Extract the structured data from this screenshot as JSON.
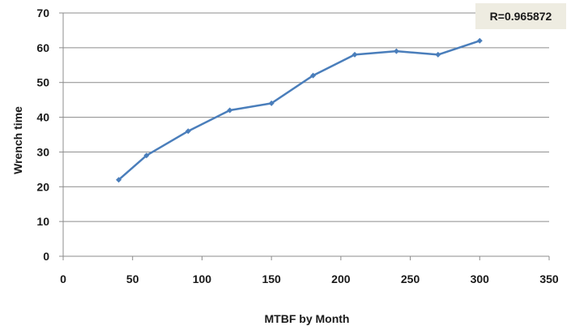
{
  "chart_data": {
    "type": "line",
    "xlabel": "MTBF by Month",
    "ylabel": "Wrench time",
    "xlim": [
      0,
      350
    ],
    "ylim": [
      0,
      70
    ],
    "x_ticks": [
      0,
      50,
      100,
      150,
      200,
      250,
      300,
      350
    ],
    "y_ticks": [
      0,
      10,
      20,
      30,
      40,
      50,
      60,
      70
    ],
    "grid": "horizontal",
    "annotation": "R=0.965872",
    "series": [
      {
        "x": [
          40,
          60,
          90,
          120,
          150,
          180,
          210,
          240,
          270,
          300
        ],
        "y": [
          22,
          29,
          36,
          42,
          44,
          52,
          58,
          59,
          58,
          62
        ],
        "color": "#4a7ebb",
        "marker": "diamond"
      }
    ]
  }
}
